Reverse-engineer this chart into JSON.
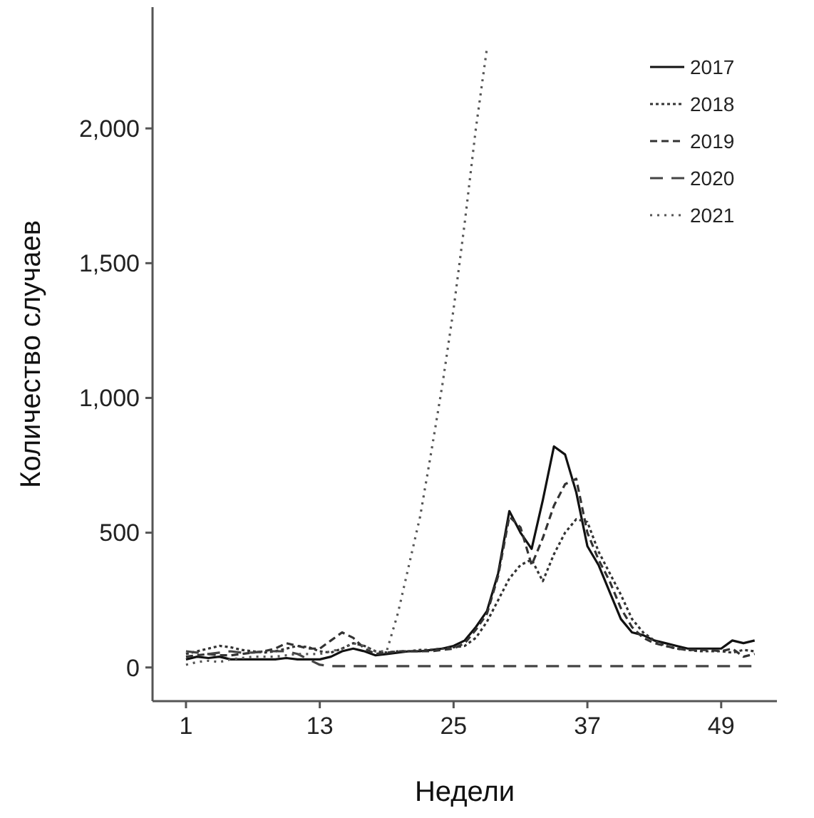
{
  "chart_data": {
    "type": "line",
    "xlabel": "Недели",
    "ylabel": "Количество случаев",
    "x": [
      1,
      2,
      3,
      4,
      5,
      6,
      7,
      8,
      9,
      10,
      11,
      12,
      13,
      14,
      15,
      16,
      17,
      18,
      19,
      20,
      21,
      22,
      23,
      24,
      25,
      26,
      27,
      28,
      29,
      30,
      31,
      32,
      33,
      34,
      35,
      36,
      37,
      38,
      39,
      40,
      41,
      42,
      43,
      44,
      45,
      46,
      47,
      48,
      49,
      50,
      51,
      52
    ],
    "xlim": [
      -2,
      54
    ],
    "xticks": [
      1,
      13,
      25,
      37,
      49
    ],
    "ylim": [
      -125,
      2450
    ],
    "yticks": [
      0,
      {
        "value": 500,
        "label": "500"
      },
      {
        "value": 1000,
        "label": "1,000"
      },
      {
        "value": 1500,
        "label": "1,500"
      },
      {
        "value": 2000,
        "label": "2,000"
      }
    ],
    "grid": false,
    "legend": "top right",
    "marker": "none",
    "series": [
      {
        "name": "2017",
        "color": "#111111",
        "line_style": "solid",
        "values": [
          30,
          40,
          35,
          40,
          30,
          30,
          30,
          30,
          30,
          35,
          30,
          30,
          30,
          40,
          60,
          70,
          60,
          45,
          50,
          55,
          60,
          60,
          65,
          70,
          80,
          100,
          150,
          210,
          350,
          580,
          500,
          440,
          620,
          820,
          790,
          650,
          450,
          380,
          280,
          180,
          130,
          120,
          100,
          90,
          80,
          70,
          70,
          70,
          70,
          100,
          90,
          100
        ]
      },
      {
        "name": "2018",
        "color": "#333333",
        "line_style": "dotted",
        "values": [
          50,
          60,
          70,
          80,
          75,
          65,
          60,
          55,
          60,
          70,
          80,
          75,
          60,
          55,
          70,
          90,
          80,
          60,
          55,
          60,
          60,
          65,
          65,
          70,
          75,
          80,
          110,
          170,
          250,
          330,
          380,
          400,
          320,
          420,
          500,
          550,
          540,
          430,
          350,
          270,
          180,
          130,
          100,
          80,
          70,
          65,
          60,
          60,
          60,
          55,
          65,
          60
        ]
      },
      {
        "name": "2019",
        "color": "#333333",
        "line_style": "dashed",
        "values": [
          40,
          45,
          50,
          45,
          45,
          50,
          55,
          60,
          70,
          90,
          80,
          70,
          70,
          100,
          130,
          110,
          70,
          50,
          55,
          60,
          60,
          60,
          60,
          65,
          70,
          90,
          140,
          200,
          340,
          560,
          520,
          380,
          480,
          600,
          680,
          700,
          500,
          400,
          320,
          220,
          150,
          110,
          90,
          80,
          70,
          65,
          65,
          65,
          60,
          70,
          40,
          50
        ]
      },
      {
        "name": "2020",
        "color": "#444444",
        "line_style": "dashed",
        "values": [
          60,
          55,
          50,
          55,
          60,
          55,
          55,
          60,
          60,
          60,
          50,
          30,
          10,
          5,
          5,
          5,
          5,
          5,
          5,
          5,
          5,
          5,
          5,
          5,
          5,
          5,
          5,
          5,
          5,
          5,
          5,
          5,
          5,
          5,
          5,
          5,
          5,
          5,
          5,
          5,
          5,
          5,
          5,
          5,
          5,
          5,
          5,
          5,
          5,
          5,
          5,
          5
        ]
      },
      {
        "name": "2021",
        "color": "#555555",
        "line_style": "dotted",
        "values": [
          10,
          20,
          25,
          20,
          30,
          35,
          40,
          40,
          40,
          45,
          50,
          50,
          50,
          60,
          70,
          90,
          80,
          60,
          60,
          200,
          380,
          560,
          800,
          1050,
          1330,
          1650,
          2000,
          2300,
          null,
          null,
          null,
          null,
          null,
          null,
          null,
          null,
          null,
          null,
          null,
          null,
          null,
          null,
          null,
          null,
          null,
          null,
          null,
          null,
          null,
          null,
          null,
          null
        ]
      }
    ]
  }
}
